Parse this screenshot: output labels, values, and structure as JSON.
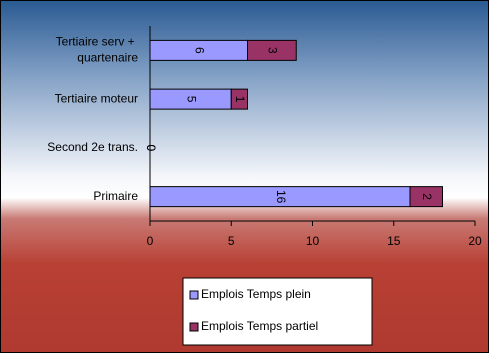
{
  "chart_data": {
    "type": "stacked-bar-horizontal",
    "categories": [
      "Tertiaire serv + quartenaire",
      "Tertiaire moteur",
      "Second 2e trans.",
      "Primaire"
    ],
    "series": [
      {
        "name": "Emplois Temps plein",
        "color": "#9999ff",
        "values": [
          6,
          5,
          0,
          16
        ]
      },
      {
        "name": "Emplois Temps partiel",
        "color": "#993366",
        "values": [
          3,
          1,
          0,
          2
        ]
      }
    ],
    "xlim": [
      0,
      20
    ],
    "xticks": [
      0,
      5,
      10,
      15,
      20
    ],
    "legend": "bottom"
  }
}
